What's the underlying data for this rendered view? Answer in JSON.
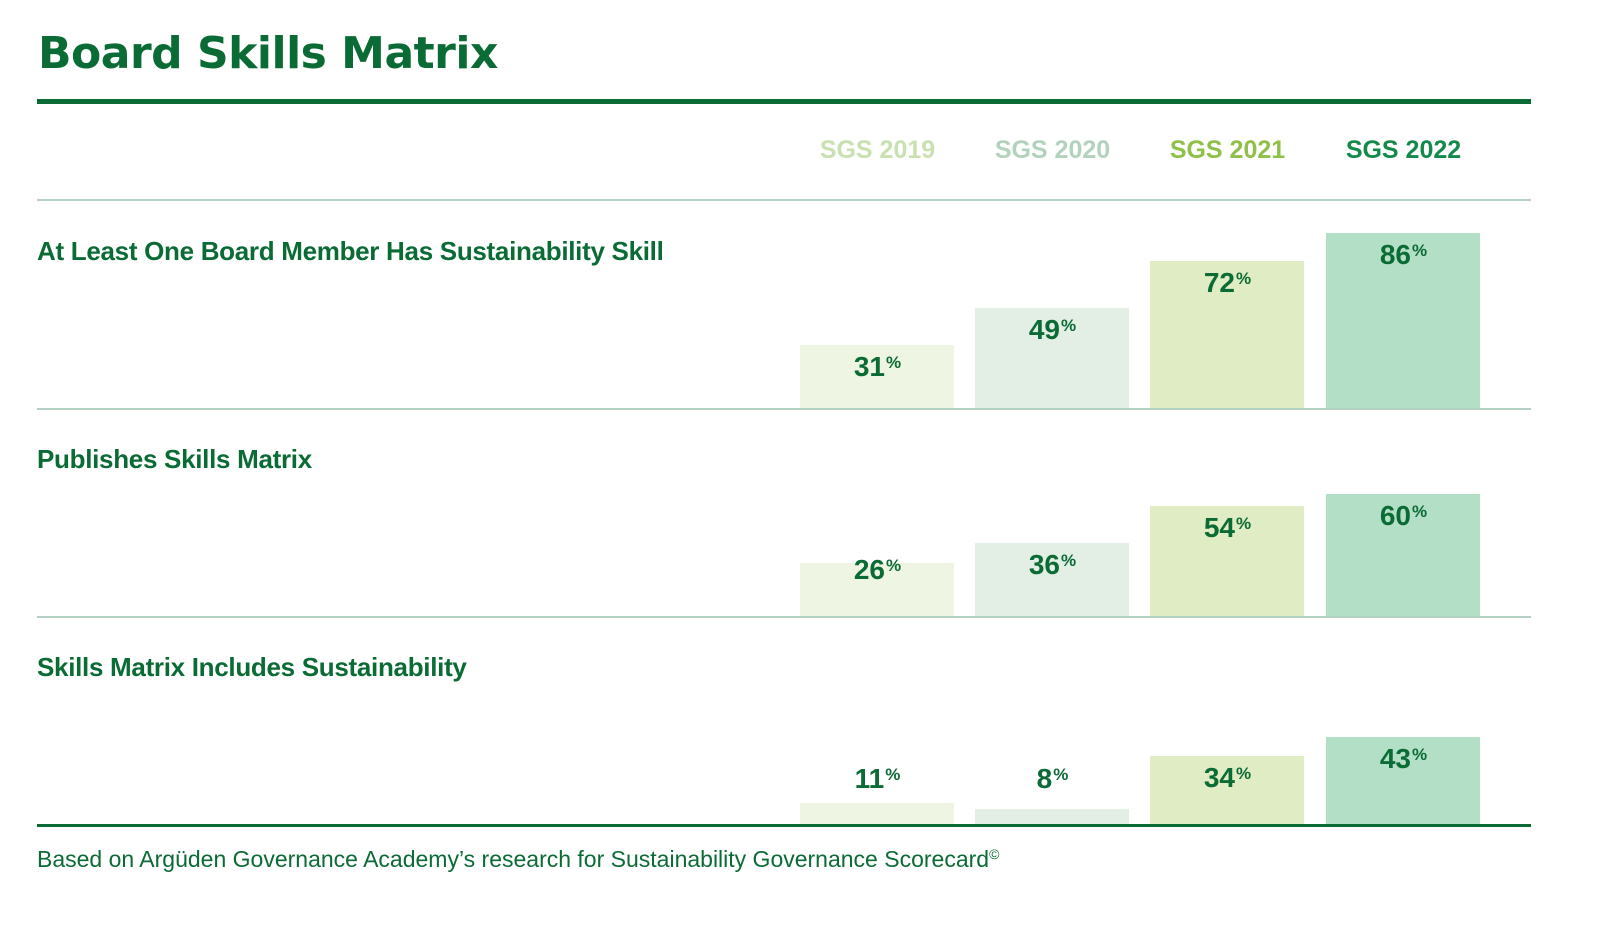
{
  "title": "Board Skills Matrix",
  "footnote": "Based on Argüden Governance Academy’s research for Sustainability Governance Scorecard",
  "footnote_symbol": "©",
  "percent_symbol": "%",
  "colors": {
    "brand_green": "#0b6b35",
    "divider": "#b3d2c3"
  },
  "chart_data": {
    "type": "bar",
    "title": "Board Skills Matrix",
    "series_names": [
      "SGS 2019",
      "SGS 2020",
      "SGS 2021",
      "SGS 2022"
    ],
    "series_colors": [
      "#eef5e2",
      "#e3efe4",
      "#dfecc4",
      "#b3dfc7"
    ],
    "header_colors": [
      "#c9e0b0",
      "#b3d2bd",
      "#8fc04a",
      "#148a4a"
    ],
    "rows": [
      {
        "label": "At Least One Board Member Has Sustainability Skill",
        "values": [
          31,
          49,
          72,
          86
        ]
      },
      {
        "label": "Publishes Skills Matrix",
        "values": [
          26,
          36,
          54,
          60
        ]
      },
      {
        "label": "Skills Matrix Includes Sustainability",
        "values": [
          11,
          8,
          34,
          43
        ]
      }
    ],
    "unit": "%"
  }
}
